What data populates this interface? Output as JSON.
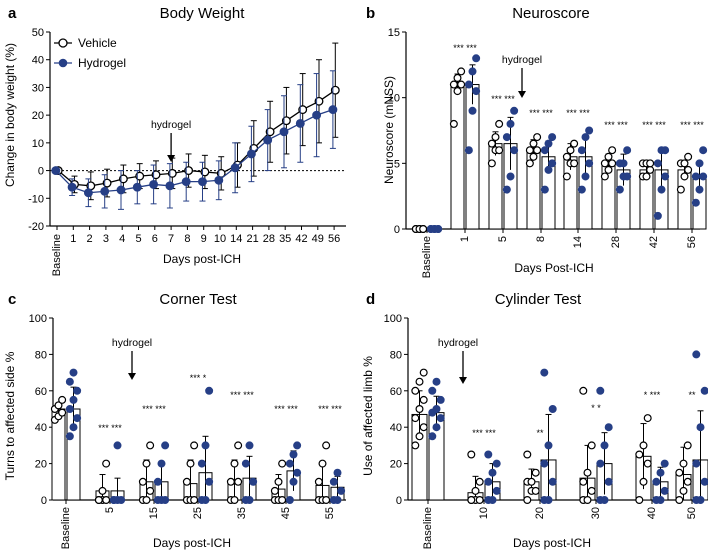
{
  "colors": {
    "vehicle": "#000000",
    "hydrogel": "#263f86",
    "background": "#ffffff"
  },
  "legend": {
    "vehicle": "Vehicle",
    "hydrogel": "Hydrogel"
  },
  "chart_data": [
    {
      "panel": "a",
      "type": "line",
      "title": "Body Weight",
      "xlabel": "Days post-ICH",
      "ylabel": "Change in body weight (%)",
      "ylim": [
        -20,
        50
      ],
      "yticks": [
        -20,
        -10,
        0,
        10,
        20,
        30,
        40,
        50
      ],
      "categories": [
        "Baseline",
        "1",
        "2",
        "3",
        "4",
        "5",
        "6",
        "7",
        "8",
        "9",
        "10",
        "14",
        "21",
        "28",
        "35",
        "42",
        "49",
        "56"
      ],
      "reference_line": 0,
      "annotation": {
        "text": "hydrogel",
        "at": "7"
      },
      "legend_position": "top-left",
      "series": [
        {
          "name": "Vehicle",
          "marker": "open-circle",
          "values": [
            0,
            -5,
            -5.5,
            -4.5,
            -3,
            -2,
            -1.5,
            -1,
            0,
            -0.5,
            -1,
            2,
            8,
            14,
            18,
            22,
            25,
            29
          ],
          "errors": [
            0,
            3,
            5,
            5,
            5,
            4.5,
            5,
            5.5,
            6,
            6,
            6,
            8,
            10,
            11,
            12,
            13,
            15,
            17
          ]
        },
        {
          "name": "Hydrogel",
          "marker": "filled-circle",
          "values": [
            0,
            -6,
            -8,
            -7.5,
            -7,
            -6,
            -5,
            -5.5,
            -4,
            -4,
            -3.5,
            1,
            6,
            11,
            14,
            17,
            20,
            22
          ],
          "errors": [
            0,
            3,
            5,
            6,
            7,
            6,
            7,
            8,
            7,
            7,
            7,
            9,
            10,
            11,
            13,
            14,
            15,
            14
          ]
        }
      ]
    },
    {
      "panel": "b",
      "type": "bar",
      "title": "Neuroscore",
      "xlabel": "Days Post-ICH",
      "ylabel": "Neuroscore (mNSS)",
      "ylim": [
        0,
        15
      ],
      "yticks": [
        0,
        5,
        10,
        15
      ],
      "categories": [
        "Baseline",
        "1",
        "5",
        "8",
        "14",
        "28",
        "42",
        "56"
      ],
      "annotation": {
        "text": "hydrogel",
        "at": "5-8"
      },
      "series": [
        {
          "name": "Vehicle",
          "values": [
            0,
            11,
            6.5,
            6,
            5.5,
            5,
            4.5,
            4.5
          ],
          "errors": [
            0.1,
            0.8,
            0.9,
            0.8,
            1,
            0.7,
            0.7,
            0.7
          ],
          "points": [
            [
              0,
              0,
              0,
              0,
              0,
              0
            ],
            [
              8,
              10.5,
              11,
              11,
              11.5,
              12
            ],
            [
              5,
              6,
              6,
              6.5,
              7,
              8
            ],
            [
              5,
              5.5,
              6,
              6,
              6.5,
              7
            ],
            [
              4,
              5,
              5,
              5.5,
              6,
              6.5
            ],
            [
              4,
              4.5,
              5,
              5,
              5.5,
              6
            ],
            [
              4,
              4,
              4.5,
              5,
              5,
              5
            ],
            [
              3,
              4,
              4.5,
              5,
              5,
              5.5
            ]
          ]
        },
        {
          "name": "Hydrogel",
          "values": [
            0,
            11,
            6.5,
            5.5,
            5.5,
            4.5,
            4.5,
            4
          ],
          "errors": [
            0.1,
            1.5,
            2,
            1.2,
            1.5,
            1.2,
            1.5,
            1
          ],
          "points": [
            [
              0,
              0,
              0,
              0,
              0,
              0
            ],
            [
              6,
              9,
              10.5,
              11,
              12,
              13
            ],
            [
              3,
              4,
              6,
              7,
              8,
              9
            ],
            [
              3,
              4.5,
              5,
              6,
              6.5,
              7
            ],
            [
              3,
              4,
              5,
              6,
              7,
              7.5
            ],
            [
              3,
              4,
              4,
              5,
              5,
              6
            ],
            [
              1,
              3,
              4,
              5,
              6,
              6
            ],
            [
              2,
              3,
              4,
              4,
              5,
              6
            ]
          ]
        }
      ],
      "significance": [
        "",
        "*** ***",
        "*** ***",
        "*** ***",
        "*** ***",
        "*** ***",
        "*** ***",
        "*** ***"
      ]
    },
    {
      "panel": "c",
      "type": "bar",
      "title": "Corner Test",
      "xlabel": "Days post-ICH",
      "ylabel": "Turns to affected side %",
      "ylim": [
        0,
        100
      ],
      "yticks": [
        0,
        20,
        40,
        60,
        80,
        100
      ],
      "categories": [
        "Baseline",
        "5",
        "15",
        "25",
        "35",
        "45",
        "55"
      ],
      "annotation": {
        "text": "hydrogel",
        "at": "5-15"
      },
      "series": [
        {
          "name": "Vehicle",
          "values": [
            50,
            5,
            10,
            9,
            9,
            6,
            8
          ],
          "errors": [
            3,
            9,
            12,
            13,
            13,
            8,
            13
          ],
          "points": [
            [
              44,
              46,
              48,
              50,
              52,
              55
            ],
            [
              0,
              0,
              0,
              0,
              5,
              20
            ],
            [
              0,
              0,
              5,
              10,
              20,
              30
            ],
            [
              0,
              0,
              0,
              10,
              20,
              30
            ],
            [
              0,
              0,
              10,
              10,
              20,
              30
            ],
            [
              0,
              0,
              0,
              5,
              10,
              20
            ],
            [
              0,
              0,
              0,
              10,
              20,
              30
            ]
          ]
        },
        {
          "name": "Hydrogel",
          "values": [
            50,
            5,
            10,
            15,
            12,
            16,
            7
          ],
          "errors": [
            12,
            7,
            10,
            20,
            12,
            11,
            6
          ],
          "points": [
            [
              35,
              40,
              45,
              50,
              55,
              60,
              65,
              70
            ],
            [
              0,
              0,
              0,
              0,
              30
            ],
            [
              0,
              0,
              0,
              10,
              20,
              30
            ],
            [
              0,
              0,
              10,
              20,
              30,
              60
            ],
            [
              0,
              0,
              10,
              20,
              30
            ],
            [
              0,
              10,
              15,
              20,
              25,
              30
            ],
            [
              0,
              0,
              5,
              10,
              15
            ]
          ]
        }
      ],
      "significance": [
        "",
        "*** ***",
        "*** ***",
        "*** *",
        "*** ***",
        "*** ***",
        "*** ***"
      ]
    },
    {
      "panel": "d",
      "type": "bar",
      "title": "Cylinder Test",
      "xlabel": "Days post-ICH",
      "ylabel": "Use of affected limb %",
      "ylim": [
        0,
        100
      ],
      "yticks": [
        0,
        20,
        40,
        60,
        80,
        100
      ],
      "categories": [
        "Baseline",
        "10",
        "20",
        "30",
        "40",
        "50"
      ],
      "annotation": {
        "text": "hydrogel",
        "at": "Baseline-10"
      },
      "series": [
        {
          "name": "Vehicle",
          "values": [
            47,
            4,
            10,
            12,
            24,
            14
          ],
          "errors": [
            13,
            9,
            7,
            18,
            18,
            15
          ],
          "points": [
            [
              30,
              35,
              40,
              45,
              50,
              55,
              60,
              65,
              70
            ],
            [
              0,
              0,
              0,
              0,
              5,
              10,
              25
            ],
            [
              0,
              5,
              5,
              10,
              10,
              15,
              25
            ],
            [
              0,
              0,
              5,
              10,
              15,
              30,
              60
            ],
            [
              0,
              10,
              20,
              25,
              30,
              45
            ],
            [
              0,
              5,
              10,
              15,
              20,
              30
            ]
          ]
        },
        {
          "name": "Hydrogel",
          "values": [
            48,
            10,
            22,
            20,
            10,
            22
          ],
          "errors": [
            9,
            10,
            25,
            17,
            8,
            27
          ],
          "points": [
            [
              35,
              40,
              45,
              48,
              50,
              55,
              60,
              65
            ],
            [
              0,
              0,
              5,
              10,
              15,
              20,
              25
            ],
            [
              0,
              0,
              10,
              20,
              30,
              50,
              70
            ],
            [
              0,
              0,
              10,
              20,
              30,
              40,
              60
            ],
            [
              0,
              0,
              5,
              10,
              15,
              20
            ],
            [
              0,
              0,
              10,
              20,
              40,
              60,
              80
            ]
          ]
        }
      ],
      "significance": [
        "",
        "*** ***",
        "**",
        "* *",
        "* ***",
        "**"
      ]
    }
  ]
}
